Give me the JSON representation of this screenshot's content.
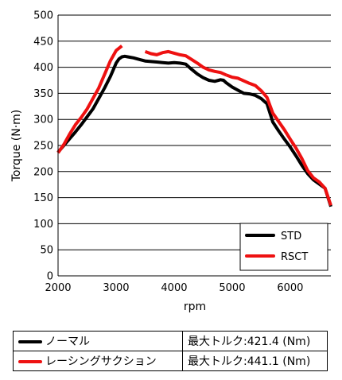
{
  "chart_data": {
    "type": "line",
    "xlabel": "rpm",
    "ylabel": "Torque (N·m)",
    "xlim": [
      2000,
      6700
    ],
    "ylim": [
      0,
      500
    ],
    "x_ticks": [
      2000,
      3000,
      4000,
      5000,
      6000
    ],
    "y_ticks": [
      0,
      50,
      100,
      150,
      200,
      250,
      300,
      350,
      400,
      450,
      500
    ],
    "grid": "horizontal",
    "legend_position": "bottom-right",
    "series": [
      {
        "name": "STD",
        "color": "#000000",
        "x": [
          2000,
          2100,
          2200,
          2300,
          2400,
          2500,
          2600,
          2700,
          2800,
          2900,
          3000,
          3050,
          3100,
          3150,
          3200,
          3300,
          3400,
          3500,
          3600,
          3700,
          3800,
          3900,
          4000,
          4100,
          4200,
          4300,
          4400,
          4500,
          4600,
          4700,
          4800,
          4850,
          4900,
          5000,
          5100,
          5200,
          5300,
          5400,
          5500,
          5600,
          5700,
          5800,
          5900,
          6000,
          6100,
          6200,
          6300,
          6400,
          6500,
          6600,
          6700
        ],
        "y": [
          237,
          250,
          263,
          276,
          290,
          305,
          320,
          340,
          360,
          382,
          408,
          416,
          420,
          421,
          420,
          418,
          415,
          412,
          411,
          410,
          409,
          408,
          409,
          408,
          406,
          396,
          387,
          380,
          375,
          373,
          376,
          375,
          370,
          362,
          356,
          350,
          349,
          346,
          340,
          330,
          295,
          278,
          262,
          247,
          230,
          212,
          196,
          184,
          176,
          168,
          133
        ],
        "segments": [
          [
            0,
            50
          ]
        ]
      },
      {
        "name": "RSCT",
        "color": "#ee1111",
        "x": [
          2000,
          2100,
          2200,
          2300,
          2400,
          2500,
          2600,
          2700,
          2800,
          2900,
          3000,
          3100,
          3500,
          3600,
          3700,
          3800,
          3900,
          4000,
          4100,
          4200,
          4300,
          4400,
          4500,
          4600,
          4700,
          4800,
          4900,
          5000,
          5100,
          5200,
          5300,
          5400,
          5500,
          5600,
          5700,
          5800,
          5900,
          6000,
          6100,
          6200,
          6300,
          6400,
          6500,
          6600,
          6700
        ],
        "y": [
          236,
          252,
          272,
          290,
          304,
          320,
          340,
          360,
          386,
          412,
          432,
          441,
          430,
          426,
          424,
          428,
          430,
          427,
          424,
          422,
          415,
          408,
          400,
          395,
          392,
          390,
          385,
          381,
          379,
          374,
          369,
          365,
          355,
          342,
          312,
          296,
          280,
          262,
          245,
          225,
          202,
          188,
          180,
          168,
          135
        ],
        "segments": [
          [
            0,
            11
          ],
          [
            12,
            26
          ],
          [
            26,
            44
          ]
        ]
      }
    ]
  },
  "summary": {
    "rows": [
      {
        "label": "ノーマル",
        "value": "最大トルク:421.4 (Nm)",
        "color": "#000000"
      },
      {
        "label": "レーシングサクション",
        "value": "最大トルク:441.1 (Nm)",
        "color": "#ee1111"
      }
    ]
  }
}
